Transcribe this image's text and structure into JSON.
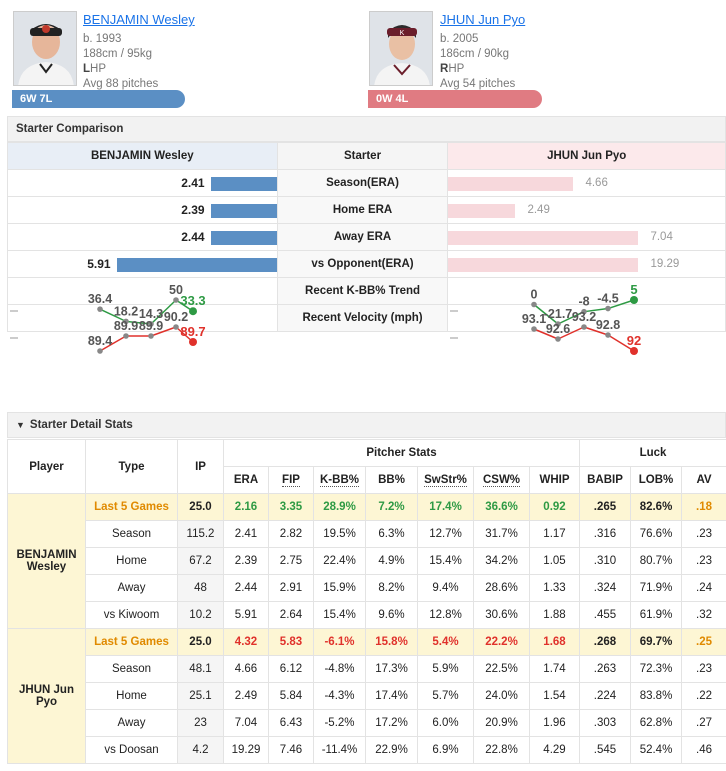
{
  "players": [
    {
      "name": "BENJAMIN Wesley",
      "born": "b. 1993",
      "size": "188cm / 95kg",
      "hand_letter": "L",
      "hand_rest": "HP",
      "avg": "Avg 88 pitches",
      "record": "6W 7L",
      "color": "#5b8fc4"
    },
    {
      "name": "JHUN Jun Pyo",
      "born": "b. 2005",
      "size": "186cm / 90kg",
      "hand_letter": "R",
      "hand_rest": "HP",
      "avg": "Avg 54 pitches",
      "record": "0W 4L",
      "color": "#e07b82"
    }
  ],
  "top_link": "...",
  "comparison": {
    "title": "Starter Comparison",
    "header_left": "BENJAMIN Wesley",
    "header_mid": "Starter",
    "header_right": "JHUN Jun Pyo",
    "rows": [
      {
        "label": "Season(ERA)",
        "left": "2.41",
        "right": "4.66",
        "lfrac": 0.41,
        "rfrac": 0.66
      },
      {
        "label": "Home ERA",
        "left": "2.39",
        "right": "2.49",
        "lfrac": 0.41,
        "rfrac": 0.35
      },
      {
        "label": "Away ERA",
        "left": "2.44",
        "right": "7.04",
        "lfrac": 0.41,
        "rfrac": 1.0
      },
      {
        "label": "vs Opponent(ERA)",
        "left": "5.91",
        "right": "19.29",
        "lfrac": 1.0,
        "rfrac": 1.0
      }
    ],
    "kbb_label": "Recent K-BB% Trend",
    "velo_label": "Recent Velocity (mph)",
    "kbb_left": [
      "36.4",
      "18.2",
      "14.3",
      "50",
      "33.3"
    ],
    "kbb_right": [
      "0",
      "-21.7",
      "-8",
      "-4.5",
      "5"
    ],
    "velo_left": [
      "89.4",
      "89.9",
      "89.9",
      "90.2",
      "89.7"
    ],
    "velo_right": [
      "93.1",
      "92.6",
      "93.2",
      "92.8",
      "92"
    ]
  },
  "detail": {
    "title": "Starter Detail Stats",
    "col_player": "Player",
    "col_type": "Type",
    "col_ip": "IP",
    "group_pitcher": "Pitcher Stats",
    "group_luck": "Luck",
    "cols": [
      "ERA",
      "FIP",
      "K-BB%",
      "BB%",
      "SwStr%",
      "CSW%",
      "WHIP",
      "BABIP",
      "LOB%",
      "AV"
    ],
    "player1": "BENJAMIN Wesley",
    "player2": "JHUN Jun Pyo",
    "rows1": [
      [
        "Last 5 Games",
        "25.0",
        "2.16",
        "3.35",
        "28.9%",
        "7.2%",
        "17.4%",
        "36.6%",
        "0.92",
        ".265",
        "82.6%",
        ".18"
      ],
      [
        "Season",
        "115.2",
        "2.41",
        "2.82",
        "19.5%",
        "6.3%",
        "12.7%",
        "31.7%",
        "1.17",
        ".316",
        "76.6%",
        ".23"
      ],
      [
        "Home",
        "67.2",
        "2.39",
        "2.75",
        "22.4%",
        "4.9%",
        "15.4%",
        "34.2%",
        "1.05",
        ".310",
        "80.7%",
        ".23"
      ],
      [
        "Away",
        "48",
        "2.44",
        "2.91",
        "15.9%",
        "8.2%",
        "9.4%",
        "28.6%",
        "1.33",
        ".324",
        "71.9%",
        ".24"
      ],
      [
        "vs Kiwoom",
        "10.2",
        "5.91",
        "2.64",
        "15.4%",
        "9.6%",
        "12.8%",
        "30.6%",
        "1.88",
        ".455",
        "61.9%",
        ".32"
      ]
    ],
    "rows2": [
      [
        "Last 5 Games",
        "25.0",
        "4.32",
        "5.83",
        "-6.1%",
        "15.8%",
        "5.4%",
        "22.2%",
        "1.68",
        ".268",
        "69.7%",
        ".25"
      ],
      [
        "Season",
        "48.1",
        "4.66",
        "6.12",
        "-4.8%",
        "17.3%",
        "5.9%",
        "22.5%",
        "1.74",
        ".263",
        "72.3%",
        ".23"
      ],
      [
        "Home",
        "25.1",
        "2.49",
        "5.84",
        "-4.3%",
        "17.4%",
        "5.7%",
        "24.0%",
        "1.54",
        ".224",
        "83.8%",
        ".22"
      ],
      [
        "Away",
        "23",
        "7.04",
        "6.43",
        "-5.2%",
        "17.2%",
        "6.0%",
        "20.9%",
        "1.96",
        ".303",
        "62.8%",
        ".27"
      ],
      [
        "vs Doosan",
        "4.2",
        "19.29",
        "7.46",
        "-11.4%",
        "22.9%",
        "6.9%",
        "22.8%",
        "4.29",
        ".545",
        "52.4%",
        ".46"
      ]
    ]
  }
}
